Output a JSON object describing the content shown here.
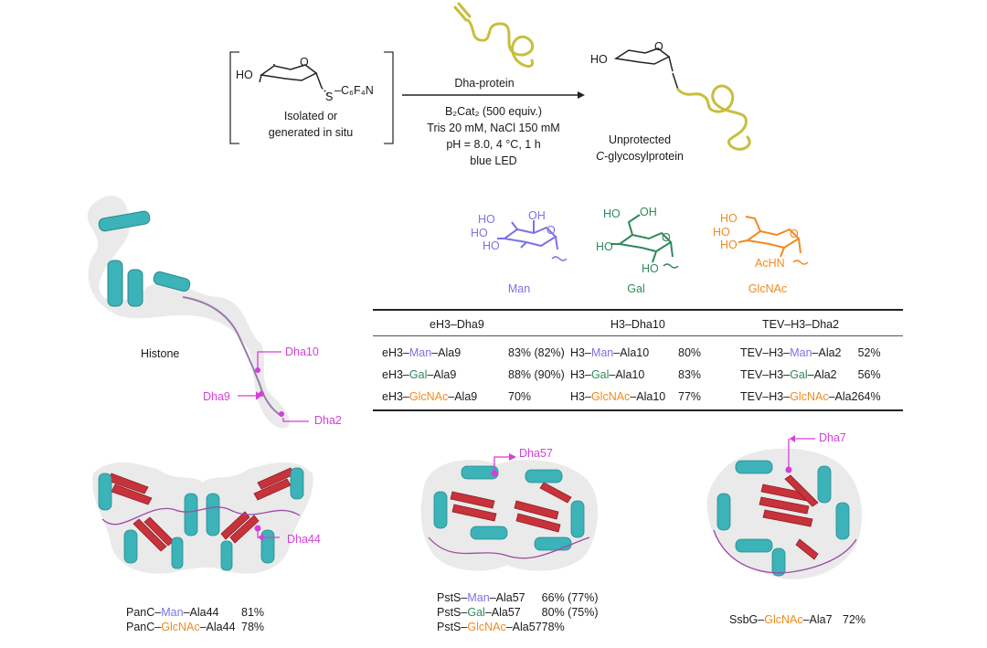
{
  "reaction": {
    "reagent_ho": "HO",
    "reagent_o": "O",
    "reagent_s": "S",
    "reagent_group": "–C₆F₄N",
    "reagent_note_1": "Isolated or",
    "reagent_note_2": "generated in situ",
    "dha_protein": "Dha-protein",
    "cond_1": "B₂Cat₂ (500 equiv.)",
    "cond_2": "Tris 20 mM, NaCl 150 mM",
    "cond_3": "pH = 8.0, 4 °C, 1 h",
    "cond_4": "blue LED",
    "product_ho": "HO",
    "product_o": "O",
    "product_1": "Unprotected",
    "product_2_prefix": "C",
    "product_2_rest": "-glycosylprotein"
  },
  "sugars": [
    {
      "name": "Man",
      "color": "#7b72e6"
    },
    {
      "name": "Gal",
      "color": "#2f8a5a"
    },
    {
      "name": "GlcNAc",
      "color": "#f28a1e"
    }
  ],
  "sugar_labels": {
    "ho": "HO",
    "oh": "OH",
    "o": "O",
    "achn": "AcHN"
  },
  "histone": {
    "label": "Histone",
    "dha10": "Dha10",
    "dha9": "Dha9",
    "dha2": "Dha2"
  },
  "table": {
    "headers": [
      "eH3–Dha9",
      "H3–Dha10",
      "TEV–H3–Dha2"
    ],
    "rows": [
      [
        {
          "pre": "eH3–",
          "sugar": "Man",
          "post": "–Ala9",
          "yield": "83% (82%)"
        },
        {
          "pre": "H3–",
          "sugar": "Man",
          "post": "–Ala10",
          "yield": "80%"
        },
        {
          "pre": "TEV–H3–",
          "sugar": "Man",
          "post": "–Ala2",
          "yield": "52%"
        }
      ],
      [
        {
          "pre": "eH3–",
          "sugar": "Gal",
          "post": "–Ala9",
          "yield": "88% (90%)"
        },
        {
          "pre": "H3–",
          "sugar": "Gal",
          "post": "–Ala10",
          "yield": "83%"
        },
        {
          "pre": "TEV–H3–",
          "sugar": "Gal",
          "post": "–Ala2",
          "yield": "56%"
        }
      ],
      [
        {
          "pre": "eH3–",
          "sugar": "GlcNAc",
          "post": "–Ala9",
          "yield": "70%"
        },
        {
          "pre": "H3–",
          "sugar": "GlcNAc",
          "post": "–Ala10",
          "yield": "77%"
        },
        {
          "pre": "TEV–H3–",
          "sugar": "GlcNAc",
          "post": "–Ala2",
          "yield": "64%"
        }
      ]
    ]
  },
  "proteins": {
    "panc": {
      "dha": "Dha44",
      "rows": [
        {
          "pre": "PanC–",
          "sugar": "Man",
          "post": "–Ala44",
          "yield": "81%"
        },
        {
          "pre": "PanC–",
          "sugar": "GlcNAc",
          "post": "–Ala44",
          "yield": "78%"
        }
      ]
    },
    "psts": {
      "dha": "Dha57",
      "rows": [
        {
          "pre": "PstS–",
          "sugar": "Man",
          "post": "–Ala57",
          "yield": "66% (77%)"
        },
        {
          "pre": "PstS–",
          "sugar": "Gal",
          "post": "–Ala57",
          "yield": "80% (75%)"
        },
        {
          "pre": "PstS–",
          "sugar": "GlcNAc",
          "post": "–Ala57",
          "yield": "78%"
        }
      ]
    },
    "ssbg": {
      "dha": "Dha7",
      "rows": [
        {
          "pre": "SsbG–",
          "sugar": "GlcNAc",
          "post": "–Ala7",
          "yield": "72%"
        }
      ]
    }
  },
  "colors": {
    "man": "#7b72e6",
    "gal": "#2f8a5a",
    "glcnac": "#f28a1e",
    "dha_marker": "#d43fd9",
    "helix": "#3bb3b8",
    "sheet": "#c8323a",
    "loop": "#a04aa6",
    "protein_cartoon": "#c8be3c"
  }
}
